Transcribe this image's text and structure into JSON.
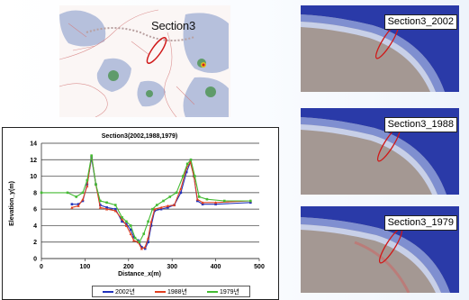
{
  "map": {
    "label": "Section3"
  },
  "panels": [
    {
      "label": "Section3_2002"
    },
    {
      "label": "Section3_1988"
    },
    {
      "label": "Section3_1979"
    }
  ],
  "colors": {
    "s2002": "#2233bb",
    "s1988": "#e04020",
    "s1979": "#44bb33"
  },
  "chart_data": {
    "type": "line",
    "title": "Section3(2002,1988,1979)",
    "xlabel": "Distance_x(m)",
    "ylabel": "Elevation_y(m)",
    "xlim": [
      0,
      500
    ],
    "ylim": [
      0,
      14
    ],
    "xticks": [
      "0",
      "100",
      "200",
      "300",
      "400",
      "500"
    ],
    "yticks": [
      "0",
      "2",
      "4",
      "6",
      "8",
      "10",
      "12",
      "14"
    ],
    "grid": "horizontal",
    "legend_position": "bottom",
    "series": [
      {
        "name": "2002년",
        "color": "#2233bb",
        "points": [
          [
            70,
            6.6
          ],
          [
            85,
            6.6
          ],
          [
            95,
            7
          ],
          [
            105,
            9
          ],
          [
            115,
            12.2
          ],
          [
            125,
            9
          ],
          [
            135,
            6.5
          ],
          [
            150,
            6.2
          ],
          [
            170,
            6
          ],
          [
            185,
            4.5
          ],
          [
            195,
            4.2
          ],
          [
            205,
            3.5
          ],
          [
            212,
            2.6
          ],
          [
            222,
            2.2
          ],
          [
            230,
            1.4
          ],
          [
            238,
            1.2
          ],
          [
            245,
            2
          ],
          [
            252,
            4
          ],
          [
            260,
            5.8
          ],
          [
            275,
            6
          ],
          [
            290,
            6.2
          ],
          [
            305,
            6.5
          ],
          [
            320,
            8
          ],
          [
            333,
            10.5
          ],
          [
            342,
            11.7
          ],
          [
            350,
            10
          ],
          [
            358,
            7
          ],
          [
            370,
            6.6
          ],
          [
            400,
            6.6
          ],
          [
            480,
            6.8
          ]
        ]
      },
      {
        "name": "1988년",
        "color": "#e04020",
        "points": [
          [
            70,
            6.2
          ],
          [
            85,
            6.4
          ],
          [
            95,
            7.2
          ],
          [
            105,
            8.8
          ],
          [
            115,
            12.5
          ],
          [
            125,
            9
          ],
          [
            135,
            6.2
          ],
          [
            150,
            6
          ],
          [
            170,
            5.8
          ],
          [
            185,
            4.8
          ],
          [
            195,
            4
          ],
          [
            205,
            3
          ],
          [
            212,
            2.2
          ],
          [
            222,
            2
          ],
          [
            230,
            1.2
          ],
          [
            238,
            1.4
          ],
          [
            245,
            2.5
          ],
          [
            252,
            4.5
          ],
          [
            260,
            6
          ],
          [
            275,
            6.2
          ],
          [
            290,
            6.4
          ],
          [
            305,
            6.5
          ],
          [
            320,
            8.5
          ],
          [
            333,
            11
          ],
          [
            342,
            11.7
          ],
          [
            350,
            10
          ],
          [
            358,
            7.2
          ],
          [
            370,
            6.8
          ],
          [
            400,
            6.8
          ],
          [
            480,
            7
          ]
        ]
      },
      {
        "name": "1979년",
        "color": "#44bb33",
        "points": [
          [
            0,
            8
          ],
          [
            60,
            8
          ],
          [
            80,
            7.5
          ],
          [
            95,
            8
          ],
          [
            105,
            9.5
          ],
          [
            115,
            12.5
          ],
          [
            125,
            9
          ],
          [
            135,
            7
          ],
          [
            150,
            6.8
          ],
          [
            170,
            6.5
          ],
          [
            185,
            5
          ],
          [
            195,
            4.5
          ],
          [
            205,
            4
          ],
          [
            215,
            2.5
          ],
          [
            225,
            2
          ],
          [
            235,
            3
          ],
          [
            245,
            4.5
          ],
          [
            255,
            6
          ],
          [
            265,
            6.5
          ],
          [
            280,
            7
          ],
          [
            295,
            7.5
          ],
          [
            310,
            8
          ],
          [
            325,
            10
          ],
          [
            335,
            11.5
          ],
          [
            343,
            12
          ],
          [
            352,
            10
          ],
          [
            362,
            7.5
          ],
          [
            380,
            7.2
          ],
          [
            420,
            7
          ],
          [
            480,
            7
          ]
        ]
      }
    ]
  }
}
